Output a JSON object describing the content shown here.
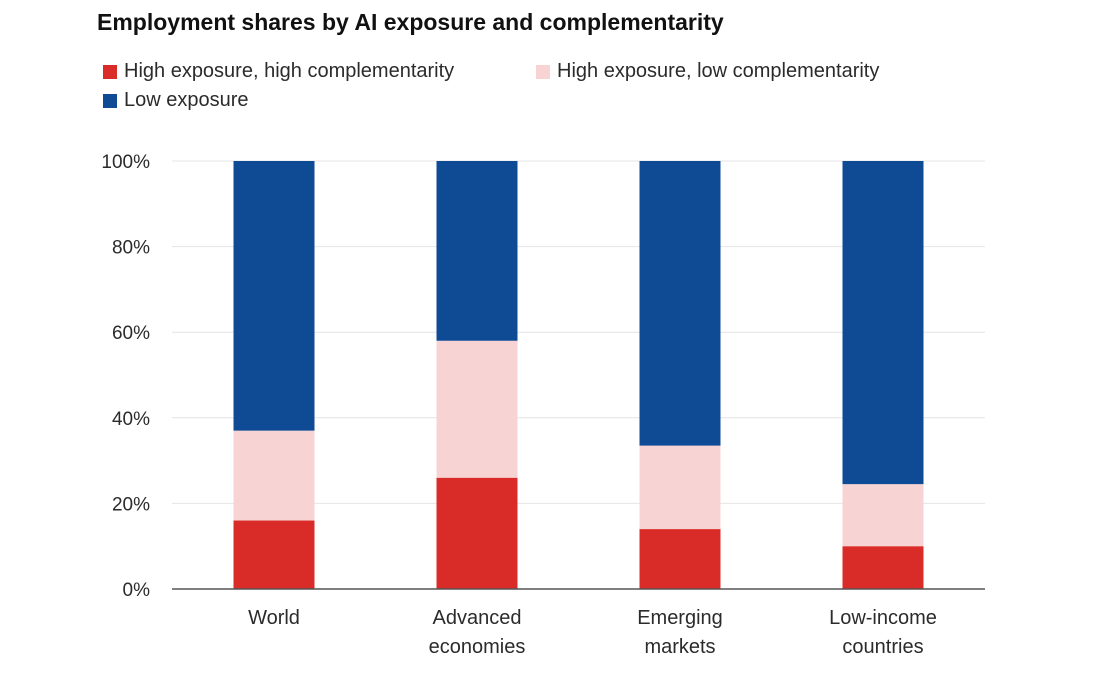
{
  "chart_data": {
    "type": "bar",
    "stacked": true,
    "title": "Employment shares by AI exposure and complementarity",
    "xlabel": "",
    "ylabel": "",
    "ylim": [
      0,
      100
    ],
    "yticks": [
      "0%",
      "20%",
      "40%",
      "60%",
      "80%",
      "100%"
    ],
    "ytick_values": [
      0,
      20,
      40,
      60,
      80,
      100
    ],
    "grid": true,
    "legend_position": "top-left",
    "categories": [
      [
        "World"
      ],
      [
        "Advanced",
        "economies"
      ],
      [
        "Emerging",
        "markets"
      ],
      [
        "Low-income",
        "countries"
      ]
    ],
    "series": [
      {
        "name": "High exposure, high complementarity",
        "color": "#d92b27",
        "values": [
          16,
          26,
          14,
          10
        ]
      },
      {
        "name": "High exposure, low complementarity",
        "color": "#f7d4d3",
        "values": [
          21,
          32,
          19.5,
          14.5
        ]
      },
      {
        "name": "Low exposure",
        "color": "#0f4a94",
        "values": [
          63,
          42,
          66.5,
          75.5
        ]
      }
    ],
    "grid_color": "#e4e4e4",
    "axis_color": "#555555"
  }
}
